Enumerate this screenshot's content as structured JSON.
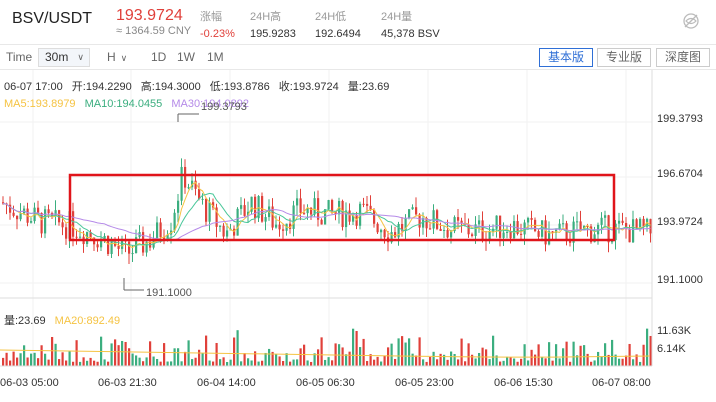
{
  "header": {
    "pair": "BSV/USDT",
    "price": "193.9724",
    "price_cny": "≈ 1364.59 CNY",
    "stats": [
      {
        "label": "涨幅",
        "value": "-0.23%",
        "negative": true
      },
      {
        "label": "24H高",
        "value": "195.9283",
        "negative": false
      },
      {
        "label": "24H低",
        "value": "192.6494",
        "negative": false
      },
      {
        "label": "24H量",
        "value": "45,378 BSV",
        "negative": false
      }
    ]
  },
  "toolbar": {
    "time_label": "Time",
    "interval": "30m",
    "interval_chevron": "∨",
    "h_label": "H",
    "h_chevron": "∨",
    "periods": [
      "1D",
      "1W",
      "1M"
    ],
    "views": [
      {
        "label": "基本版",
        "active": true
      },
      {
        "label": "专业版",
        "active": false
      },
      {
        "label": "深度图",
        "active": false
      }
    ]
  },
  "info": {
    "date": "06-07 17:00",
    "open": "开:194.2290",
    "high": "高:194.3000",
    "low": "低:193.8786",
    "close": "收:193.9724",
    "volume": "量:23.69",
    "ma5": "MA5:193.8979",
    "ma10": "MA10:194.0455",
    "ma30": "MA30:194.0892"
  },
  "volume_info": {
    "vol": "量:23.69",
    "ma20": "MA20:892.49"
  },
  "price_axis": [
    "199.3793",
    "196.6704",
    "193.9724",
    "191.1000"
  ],
  "volume_axis": [
    "11.63K",
    "6.14K"
  ],
  "time_axis": [
    "06-03 05:00",
    "06-03 21:30",
    "06-04 14:00",
    "06-05 06:30",
    "06-05 23:00",
    "06-06 15:30",
    "06-07 08:00"
  ],
  "markers": {
    "high": "199.3793",
    "low": "191.1000"
  },
  "colors": {
    "up": "#3bae7f",
    "down": "#e0403a",
    "ma5": "#f5c342",
    "ma10": "#4ac79a",
    "ma30": "#b58ae8",
    "highlight_box": "#e0141a",
    "accent": "#2f6fd6"
  },
  "chart_data": {
    "type": "candlestick",
    "y_range": [
      190.2,
      200.8
    ],
    "high": 199.3793,
    "low": 191.1,
    "last_close": 193.9724
  }
}
